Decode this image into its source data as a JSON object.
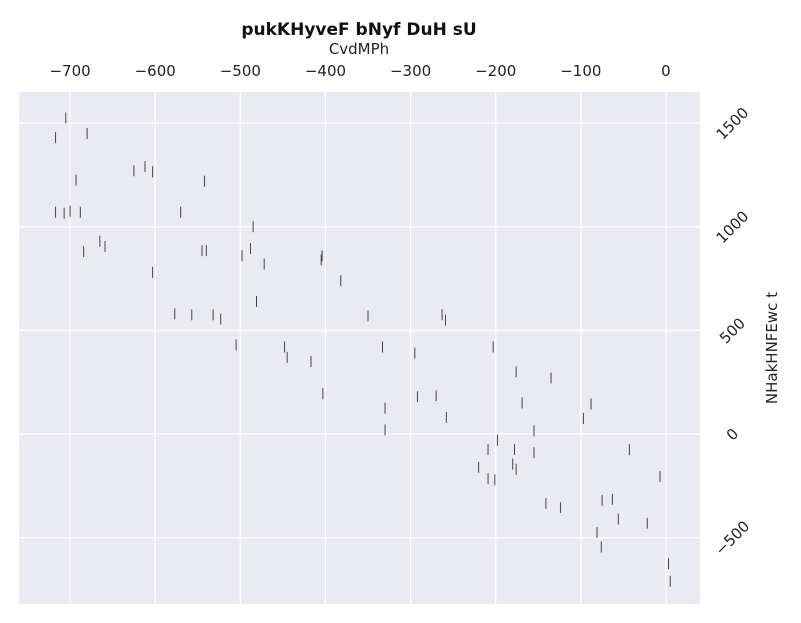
{
  "chart_data": {
    "type": "scatter",
    "marker": "vertical-line",
    "title": "pukKHyveF bNyf  DuH sU",
    "xlabel": "CvdMPh",
    "ylabel": "NHakHNFEwc t",
    "x_axis_position": "top",
    "y_axis_position": "right",
    "xlim": [
      -760,
      40
    ],
    "ylim": [
      -820,
      1650
    ],
    "xticks": [
      -700,
      -600,
      -500,
      -400,
      -300,
      -200,
      -100,
      0
    ],
    "xtick_labels": [
      "−700",
      "−600",
      "−500",
      "−400",
      "−300",
      "−200",
      "−100",
      "0"
    ],
    "yticks": [
      1500,
      1000,
      500,
      0,
      -500
    ],
    "ytick_labels": [
      "1500",
      "1000",
      "500",
      "0",
      "−500"
    ],
    "grid": true,
    "colors": {
      "background": "#eaeaf2",
      "grid": "#ffffff",
      "marker": "#333333"
    },
    "points": [
      {
        "x": -705,
        "y": 1525
      },
      {
        "x": -717,
        "y": 1430
      },
      {
        "x": -680,
        "y": 1450
      },
      {
        "x": -693,
        "y": 1225
      },
      {
        "x": -625,
        "y": 1270
      },
      {
        "x": -612,
        "y": 1290
      },
      {
        "x": -603,
        "y": 1265
      },
      {
        "x": -542,
        "y": 1220
      },
      {
        "x": -717,
        "y": 1070
      },
      {
        "x": -707,
        "y": 1065
      },
      {
        "x": -700,
        "y": 1075
      },
      {
        "x": -688,
        "y": 1070
      },
      {
        "x": -570,
        "y": 1070
      },
      {
        "x": -485,
        "y": 1000
      },
      {
        "x": -665,
        "y": 930
      },
      {
        "x": -659,
        "y": 905
      },
      {
        "x": -684,
        "y": 880
      },
      {
        "x": -545,
        "y": 885
      },
      {
        "x": -540,
        "y": 885
      },
      {
        "x": -488,
        "y": 895
      },
      {
        "x": -498,
        "y": 860
      },
      {
        "x": -472,
        "y": 820
      },
      {
        "x": -603,
        "y": 780
      },
      {
        "x": -405,
        "y": 840
      },
      {
        "x": -404,
        "y": 860
      },
      {
        "x": -382,
        "y": 740
      },
      {
        "x": -481,
        "y": 640
      },
      {
        "x": -577,
        "y": 580
      },
      {
        "x": -557,
        "y": 575
      },
      {
        "x": -532,
        "y": 575
      },
      {
        "x": -523,
        "y": 555
      },
      {
        "x": -350,
        "y": 570
      },
      {
        "x": -263,
        "y": 575
      },
      {
        "x": -259,
        "y": 550
      },
      {
        "x": -505,
        "y": 430
      },
      {
        "x": -448,
        "y": 420
      },
      {
        "x": -445,
        "y": 370
      },
      {
        "x": -417,
        "y": 350
      },
      {
        "x": -333,
        "y": 420
      },
      {
        "x": -295,
        "y": 390
      },
      {
        "x": -203,
        "y": 420
      },
      {
        "x": -176,
        "y": 300
      },
      {
        "x": -135,
        "y": 270
      },
      {
        "x": -88,
        "y": 145
      },
      {
        "x": -403,
        "y": 195
      },
      {
        "x": -292,
        "y": 180
      },
      {
        "x": -270,
        "y": 185
      },
      {
        "x": -330,
        "y": 125
      },
      {
        "x": -169,
        "y": 150
      },
      {
        "x": -258,
        "y": 80
      },
      {
        "x": -97,
        "y": 75
      },
      {
        "x": -330,
        "y": 20
      },
      {
        "x": -155,
        "y": 15
      },
      {
        "x": -198,
        "y": -30
      },
      {
        "x": -209,
        "y": -75
      },
      {
        "x": -178,
        "y": -75
      },
      {
        "x": -155,
        "y": -90
      },
      {
        "x": -43,
        "y": -75
      },
      {
        "x": -220,
        "y": -160
      },
      {
        "x": -180,
        "y": -145
      },
      {
        "x": -176,
        "y": -170
      },
      {
        "x": -209,
        "y": -215
      },
      {
        "x": -201,
        "y": -220
      },
      {
        "x": -7,
        "y": -205
      },
      {
        "x": -141,
        "y": -335
      },
      {
        "x": -124,
        "y": -355
      },
      {
        "x": -75,
        "y": -320
      },
      {
        "x": -63,
        "y": -315
      },
      {
        "x": -56,
        "y": -410
      },
      {
        "x": -22,
        "y": -430
      },
      {
        "x": -81,
        "y": -475
      },
      {
        "x": -76,
        "y": -545
      },
      {
        "x": 3,
        "y": -625
      },
      {
        "x": 5,
        "y": -710
      }
    ]
  }
}
